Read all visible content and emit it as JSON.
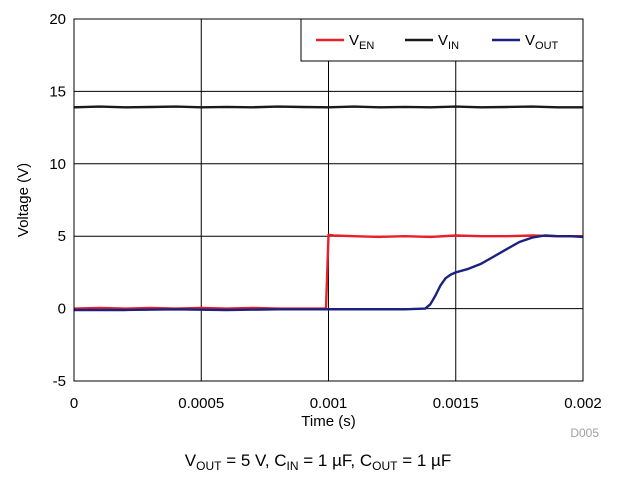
{
  "chart_data": {
    "type": "line",
    "xlabel": "Time (s)",
    "ylabel": "Voltage (V)",
    "xlim": [
      0,
      0.002
    ],
    "ylim": [
      -5,
      20
    ],
    "x_ticks": [
      0,
      0.0005,
      0.001,
      0.0015,
      0.002
    ],
    "x_tick_labels": [
      "0",
      "0.0005",
      "0.001",
      "0.0015",
      "0.002"
    ],
    "y_ticks": [
      -5,
      0,
      5,
      10,
      15,
      20
    ],
    "y_tick_labels": [
      "-5",
      "0",
      "5",
      "10",
      "15",
      "20"
    ],
    "grid": true,
    "legend_position": "top-right",
    "series": [
      {
        "key": "en",
        "name": "VEN",
        "name_parts": {
          "main": "V",
          "sub": "EN"
        },
        "color": "#e8202a",
        "x": [
          0,
          0.0001,
          0.0002,
          0.0003,
          0.0004,
          0.0005,
          0.0006,
          0.0007,
          0.0008,
          0.0009,
          0.00099,
          0.001,
          0.00102,
          0.0011,
          0.0012,
          0.0013,
          0.0014,
          0.0015,
          0.0016,
          0.0017,
          0.0018,
          0.0019,
          0.002
        ],
        "y": [
          0.0,
          0.05,
          0.0,
          0.05,
          0.0,
          0.05,
          0.0,
          0.05,
          0.0,
          0.0,
          0.0,
          5.1,
          5.05,
          5.0,
          4.95,
          5.0,
          4.95,
          5.05,
          5.0,
          5.0,
          5.05,
          5.0,
          5.0
        ]
      },
      {
        "key": "in",
        "name": "VIN",
        "name_parts": {
          "main": "V",
          "sub": "IN"
        },
        "color": "#1a1a1a",
        "x": [
          0,
          0.0001,
          0.0002,
          0.0003,
          0.0004,
          0.0005,
          0.0006,
          0.0007,
          0.0008,
          0.0009,
          0.001,
          0.0011,
          0.0012,
          0.0013,
          0.0014,
          0.0015,
          0.0016,
          0.0017,
          0.0018,
          0.0019,
          0.002
        ],
        "y": [
          13.9,
          13.95,
          13.9,
          13.92,
          13.95,
          13.9,
          13.93,
          13.9,
          13.95,
          13.92,
          13.9,
          13.95,
          13.9,
          13.93,
          13.9,
          13.95,
          13.9,
          13.92,
          13.95,
          13.9,
          13.9
        ]
      },
      {
        "key": "out",
        "name": "VOUT",
        "name_parts": {
          "main": "V",
          "sub": "OUT"
        },
        "color": "#1c2080",
        "x": [
          0,
          0.0002,
          0.0004,
          0.0006,
          0.0008,
          0.001,
          0.0012,
          0.0013,
          0.00138,
          0.0014,
          0.00142,
          0.00144,
          0.00146,
          0.00148,
          0.0015,
          0.00155,
          0.0016,
          0.00165,
          0.0017,
          0.00175,
          0.0018,
          0.00185,
          0.0019,
          0.00195,
          0.002
        ],
        "y": [
          -0.1,
          -0.1,
          -0.05,
          -0.1,
          -0.05,
          -0.05,
          -0.05,
          -0.05,
          0.0,
          0.3,
          0.9,
          1.6,
          2.1,
          2.35,
          2.5,
          2.75,
          3.1,
          3.6,
          4.1,
          4.6,
          4.9,
          5.05,
          5.0,
          5.0,
          4.95
        ]
      }
    ]
  },
  "figure": {
    "code": "D005",
    "caption_parts": [
      {
        "text": "V",
        "sub": false
      },
      {
        "text": "OUT",
        "sub": true
      },
      {
        "text": " = 5 V, C",
        "sub": false
      },
      {
        "text": "IN",
        "sub": true
      },
      {
        "text": " = 1 µF, C",
        "sub": false
      },
      {
        "text": "OUT",
        "sub": true
      },
      {
        "text": " = 1 µF",
        "sub": false
      }
    ]
  }
}
